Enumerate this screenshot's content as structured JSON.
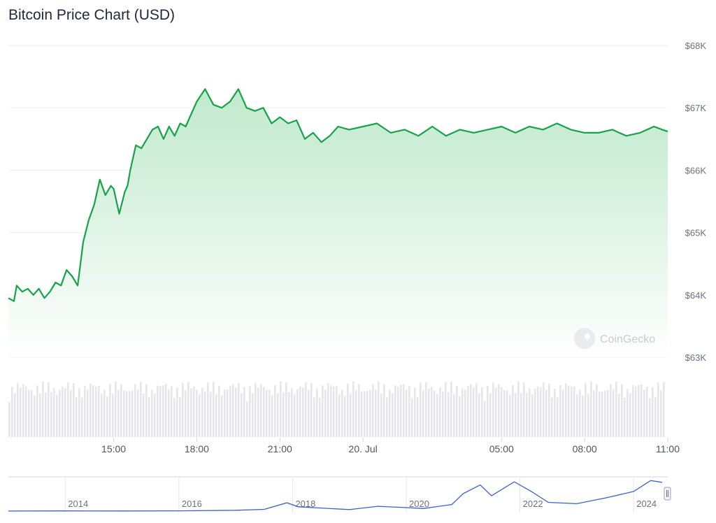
{
  "title": "Bitcoin Price Chart (USD)",
  "watermark": "CoinGecko",
  "colors": {
    "line": "#16a34a",
    "fill_top": "#bfe9cb",
    "volume": "#e5e7eb",
    "navigator_line": "#3b63c4",
    "grid": "#eef0f2"
  },
  "chart_data": {
    "type": "area",
    "title": "Bitcoin Price Chart (USD)",
    "ylim": [
      63000,
      68000
    ],
    "y_ticks": [
      "$63K",
      "$64K",
      "$65K",
      "$66K",
      "$67K",
      "$68K"
    ],
    "y_tick_values": [
      63000,
      64000,
      65000,
      66000,
      67000,
      68000
    ],
    "x_ticks": [
      "15:00",
      "18:00",
      "21:00",
      "20. Jul",
      "05:00",
      "08:00",
      "11:00"
    ],
    "x_tick_hours": [
      3,
      6,
      9,
      12,
      17,
      20,
      23
    ],
    "x_range_hours": [
      -0.8,
      23
    ],
    "series": [
      {
        "x": [
          -0.8,
          -0.6,
          -0.5,
          -0.3,
          -0.1,
          0.1,
          0.3,
          0.5,
          0.7,
          0.9,
          1.1,
          1.3,
          1.5,
          1.7,
          1.9,
          2.1,
          2.3,
          2.5,
          2.7,
          2.9,
          3.0,
          3.2,
          3.4,
          3.5,
          3.6,
          3.8,
          4.0,
          4.2,
          4.4,
          4.6,
          4.8,
          5.0,
          5.2,
          5.4,
          5.6,
          5.8,
          6.0,
          6.3,
          6.6,
          6.9,
          7.2,
          7.5,
          7.8,
          8.1,
          8.4,
          8.7,
          9.0,
          9.3,
          9.6,
          9.9,
          10.2,
          10.5,
          10.8,
          11.1,
          11.5,
          12.0,
          12.5,
          13.0,
          13.5,
          14.0,
          14.5,
          15.0,
          15.5,
          16.0,
          16.5,
          17.0,
          17.5,
          18.0,
          18.5,
          19.0,
          19.5,
          20.0,
          20.5,
          21.0,
          21.5,
          22.0,
          22.5,
          22.8,
          23.0
        ],
        "y": [
          63950,
          63900,
          64150,
          64050,
          64100,
          64000,
          64100,
          63950,
          64050,
          64200,
          64150,
          64400,
          64300,
          64150,
          64850,
          65200,
          65450,
          65850,
          65600,
          65750,
          65700,
          65300,
          65650,
          65750,
          66000,
          66400,
          66350,
          66500,
          66650,
          66700,
          66500,
          66700,
          66550,
          66750,
          66700,
          66900,
          67100,
          67300,
          67050,
          67000,
          67100,
          67300,
          67000,
          66950,
          67000,
          66750,
          66850,
          66750,
          66800,
          66500,
          66600,
          66450,
          66550,
          66700,
          66650,
          66700,
          66750,
          66600,
          66650,
          66550,
          66700,
          66550,
          66650,
          66600,
          66650,
          66700,
          66600,
          66700,
          66650,
          66750,
          66650,
          66600,
          66600,
          66650,
          66550,
          66600,
          66700,
          66650,
          66620
        ]
      }
    ],
    "volume": {
      "visible": true
    },
    "navigator": {
      "x_ticks": [
        "2014",
        "2016",
        "2018",
        "2020",
        "2022",
        "2024"
      ],
      "years": [
        2013.0,
        2014.0,
        2015.0,
        2016.0,
        2017.0,
        2017.5,
        2017.9,
        2018.1,
        2018.5,
        2019.0,
        2019.5,
        2020.0,
        2020.3,
        2020.8,
        2021.0,
        2021.3,
        2021.5,
        2021.9,
        2022.2,
        2022.5,
        2023.0,
        2023.5,
        2024.0,
        2024.3,
        2024.5
      ],
      "prices": [
        200,
        500,
        300,
        600,
        2000,
        4000,
        19000,
        10000,
        7000,
        3500,
        11000,
        8000,
        6000,
        15000,
        40000,
        60000,
        35000,
        67000,
        45000,
        20000,
        17000,
        30000,
        45000,
        70000,
        66000
      ]
    }
  }
}
